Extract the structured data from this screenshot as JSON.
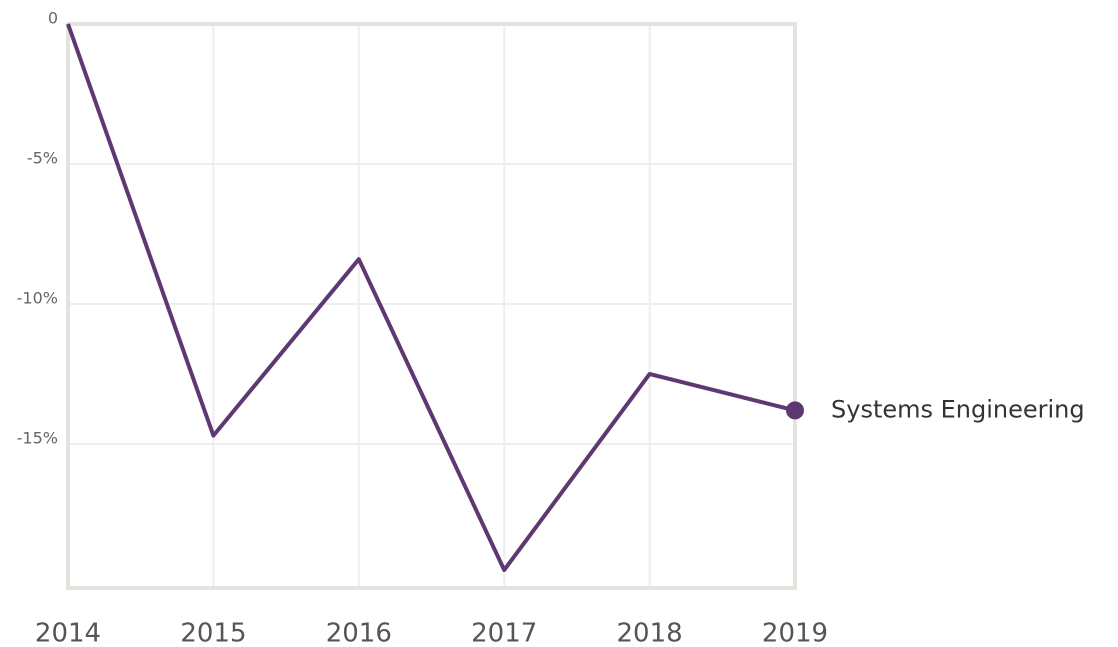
{
  "chart_data": {
    "type": "line",
    "categories": [
      "2014",
      "2015",
      "2016",
      "2017",
      "2018",
      "2019"
    ],
    "series": [
      {
        "name": "Systems Engineering",
        "color": "#5e3872",
        "values": [
          0,
          -14.7,
          -8.4,
          -19.5,
          -12.5,
          -13.8
        ]
      }
    ],
    "ylim": [
      -20,
      0
    ],
    "yticks": [
      0,
      {
        "value": -5,
        "label": "-5%"
      },
      {
        "value": -10,
        "label": "-10%"
      },
      {
        "value": -15,
        "label": "-15%"
      }
    ],
    "grid": true
  }
}
